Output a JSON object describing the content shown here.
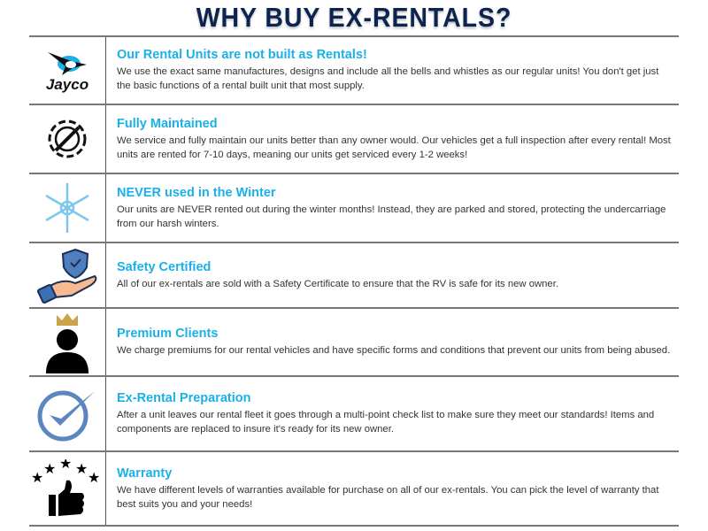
{
  "title": "WHY BUY EX-RENTALS?",
  "colors": {
    "title": "#0d2350",
    "heading": "#1ab0e8",
    "body": "#333333"
  },
  "rows": [
    {
      "icon": "jayco-logo",
      "logo_text": "Jayco",
      "heading": "Our Rental Units are not built as Rentals!",
      "body": "We use the exact same manufactures, designs and include all the bells and whistles as our regular units! You don't get just the basic functions of a rental built unit that most supply."
    },
    {
      "icon": "gear-wrench-icon",
      "heading": "Fully Maintained",
      "body": "We service and fully maintain our units better than any owner would. Our vehicles get a full inspection after every rental! Most units are rented for 7-10 days, meaning our units get serviced every 1-2 weeks!"
    },
    {
      "icon": "snowflake-icon",
      "heading": "NEVER used in the Winter",
      "body": "Our units are NEVER rented out during the winter months! Instead, they are parked and stored, protecting the undercarriage from our harsh winters."
    },
    {
      "icon": "shield-hand-icon",
      "heading": "Safety Certified",
      "body": "All of our ex-rentals are sold with a Safety Certificate to ensure that the RV is safe for its new owner."
    },
    {
      "icon": "crowned-person-icon",
      "heading": "Premium Clients",
      "body": "We charge premiums for our rental vehicles and have specific forms and conditions that prevent our units from being abused."
    },
    {
      "icon": "check-circle-icon",
      "heading": "Ex-Rental Preparation",
      "body": "After a unit leaves our rental fleet it goes through a multi-point check list to make sure they meet our standards! Items and components are replaced to insure it's ready for its new owner."
    },
    {
      "icon": "thumbs-up-stars-icon",
      "heading": "Warranty",
      "body": "We have different levels of warranties available for purchase on all of our ex-rentals. You can pick the level of warranty that best suits you and your needs!"
    }
  ]
}
